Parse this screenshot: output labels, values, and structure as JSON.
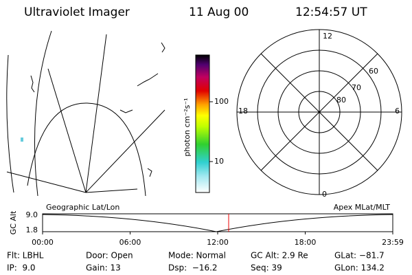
{
  "header": {
    "instrument": "Ultraviolet Imager",
    "date": "11 Aug 00",
    "time": "12:54:57 UT"
  },
  "colorbar": {
    "unit": "photon cm⁻²s⁻¹",
    "ticks": [
      "100",
      "10"
    ]
  },
  "polar": {
    "mlt_labels": [
      "12",
      "18",
      "6",
      "0"
    ],
    "lat_labels": [
      "60",
      "70",
      "80"
    ]
  },
  "orbit_plot": {
    "left_title": "Geographic Lat/Lon",
    "right_title": "Apex MLat/MLT",
    "y_label": "GC Alt",
    "y_ticks": [
      "9.0",
      "1.8"
    ],
    "x_ticks": [
      "00:00",
      "06:00",
      "12:00",
      "18:00",
      "23:59"
    ]
  },
  "info": {
    "rows": [
      [
        "Flt: LBHL",
        "Door: Open",
        "Mode: Normal",
        "GC Alt: 2.9 Re",
        "GLat: −81.7"
      ],
      [
        "IP:  9.0",
        "Gain: 13",
        "Dsp:  −16.2",
        "Seq: 39",
        "GLon: 134.2"
      ]
    ]
  }
}
